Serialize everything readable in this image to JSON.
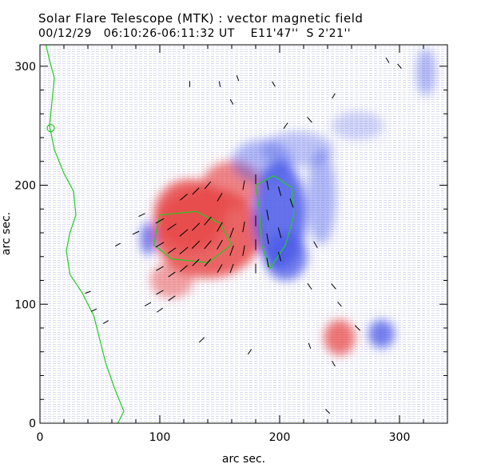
{
  "chart_data": {
    "type": "heatmap",
    "title": "Solar Flare Telescope (MTK) : vector magnetic field",
    "subtitle_date": "00/12/29",
    "subtitle_time": "06:10:26-06:11:32 UT",
    "subtitle_position": "E11'47''  S 2'21''",
    "xlabel": "arc sec.",
    "ylabel": "arc sec.",
    "xlim": [
      0,
      340
    ],
    "ylim": [
      0,
      318
    ],
    "x_ticks": [
      0,
      100,
      200,
      300
    ],
    "y_ticks": [
      0,
      100,
      200,
      300
    ],
    "colors": {
      "positive_polarity": "#e84a4a",
      "negative_polarity": "#4a5ae8",
      "contour": "#22cc22",
      "vectors": "#000000"
    },
    "regions": [
      {
        "polarity": "positive",
        "x": 140,
        "y": 160,
        "rx": 45,
        "ry": 38,
        "strength": 1.0
      },
      {
        "polarity": "positive",
        "x": 125,
        "y": 175,
        "rx": 30,
        "ry": 30,
        "strength": 1.0
      },
      {
        "polarity": "positive",
        "x": 160,
        "y": 200,
        "rx": 25,
        "ry": 20,
        "strength": 0.8
      },
      {
        "polarity": "positive",
        "x": 110,
        "y": 120,
        "rx": 18,
        "ry": 15,
        "strength": 0.6
      },
      {
        "polarity": "positive",
        "x": 250,
        "y": 72,
        "rx": 13,
        "ry": 15,
        "strength": 0.9
      },
      {
        "polarity": "negative",
        "x": 200,
        "y": 175,
        "rx": 22,
        "ry": 45,
        "strength": 1.0
      },
      {
        "polarity": "negative",
        "x": 205,
        "y": 140,
        "rx": 18,
        "ry": 20,
        "strength": 0.9
      },
      {
        "polarity": "negative",
        "x": 185,
        "y": 220,
        "rx": 25,
        "ry": 18,
        "strength": 0.5
      },
      {
        "polarity": "negative",
        "x": 90,
        "y": 155,
        "rx": 6,
        "ry": 14,
        "strength": 0.9
      },
      {
        "polarity": "negative",
        "x": 285,
        "y": 75,
        "rx": 11,
        "ry": 12,
        "strength": 0.9
      },
      {
        "polarity": "negative",
        "x": 235,
        "y": 190,
        "rx": 12,
        "ry": 40,
        "strength": 0.5
      },
      {
        "polarity": "negative",
        "x": 322,
        "y": 295,
        "rx": 8,
        "ry": 20,
        "strength": 0.5
      },
      {
        "polarity": "negative",
        "x": 265,
        "y": 250,
        "rx": 22,
        "ry": 12,
        "strength": 0.3
      },
      {
        "polarity": "negative",
        "x": 215,
        "y": 230,
        "rx": 30,
        "ry": 15,
        "strength": 0.4
      }
    ],
    "limb_contour": [
      [
        5,
        318
      ],
      [
        8,
        305
      ],
      [
        12,
        290
      ],
      [
        10,
        270
      ],
      [
        8,
        250
      ],
      [
        12,
        230
      ],
      [
        20,
        210
      ],
      [
        28,
        195
      ],
      [
        30,
        175
      ],
      [
        25,
        160
      ],
      [
        22,
        145
      ],
      [
        25,
        125
      ],
      [
        35,
        110
      ],
      [
        45,
        90
      ],
      [
        50,
        70
      ],
      [
        55,
        50
      ],
      [
        62,
        30
      ],
      [
        70,
        10
      ],
      [
        65,
        0
      ]
    ],
    "small_contour": {
      "x": 9,
      "y": 248,
      "r": 3
    },
    "neutral_contours": [
      [
        [
          100,
          175
        ],
        [
          130,
          178
        ],
        [
          150,
          168
        ],
        [
          160,
          150
        ],
        [
          140,
          135
        ],
        [
          110,
          138
        ],
        [
          95,
          150
        ],
        [
          100,
          175
        ]
      ],
      [
        [
          180,
          200
        ],
        [
          195,
          208
        ],
        [
          210,
          198
        ],
        [
          212,
          175
        ],
        [
          205,
          150
        ],
        [
          192,
          130
        ],
        [
          185,
          150
        ],
        [
          183,
          180
        ],
        [
          180,
          200
        ]
      ]
    ],
    "vectors": [
      {
        "x": 100,
        "y": 170,
        "angle": -60,
        "len": 8
      },
      {
        "x": 110,
        "y": 165,
        "angle": -55,
        "len": 9
      },
      {
        "x": 120,
        "y": 160,
        "angle": -50,
        "len": 9
      },
      {
        "x": 130,
        "y": 165,
        "angle": -45,
        "len": 9
      },
      {
        "x": 140,
        "y": 170,
        "angle": -40,
        "len": 9
      },
      {
        "x": 150,
        "y": 165,
        "angle": -30,
        "len": 9
      },
      {
        "x": 160,
        "y": 160,
        "angle": -20,
        "len": 9
      },
      {
        "x": 170,
        "y": 165,
        "angle": -10,
        "len": 9
      },
      {
        "x": 180,
        "y": 170,
        "angle": 0,
        "len": 9
      },
      {
        "x": 190,
        "y": 175,
        "angle": 10,
        "len": 9
      },
      {
        "x": 100,
        "y": 150,
        "angle": -60,
        "len": 8
      },
      {
        "x": 110,
        "y": 145,
        "angle": -55,
        "len": 8
      },
      {
        "x": 120,
        "y": 145,
        "angle": -50,
        "len": 9
      },
      {
        "x": 130,
        "y": 150,
        "angle": -45,
        "len": 9
      },
      {
        "x": 140,
        "y": 150,
        "angle": -40,
        "len": 9
      },
      {
        "x": 150,
        "y": 150,
        "angle": -30,
        "len": 9
      },
      {
        "x": 160,
        "y": 145,
        "angle": -20,
        "len": 9
      },
      {
        "x": 170,
        "y": 145,
        "angle": -10,
        "len": 9
      },
      {
        "x": 180,
        "y": 150,
        "angle": 0,
        "len": 9
      },
      {
        "x": 190,
        "y": 155,
        "angle": 10,
        "len": 9
      },
      {
        "x": 200,
        "y": 160,
        "angle": 15,
        "len": 9
      },
      {
        "x": 100,
        "y": 130,
        "angle": -60,
        "len": 7
      },
      {
        "x": 110,
        "y": 125,
        "angle": -55,
        "len": 7
      },
      {
        "x": 120,
        "y": 130,
        "angle": -50,
        "len": 8
      },
      {
        "x": 130,
        "y": 135,
        "angle": -45,
        "len": 8
      },
      {
        "x": 140,
        "y": 135,
        "angle": -40,
        "len": 8
      },
      {
        "x": 150,
        "y": 130,
        "angle": -30,
        "len": 8
      },
      {
        "x": 160,
        "y": 130,
        "angle": -20,
        "len": 8
      },
      {
        "x": 180,
        "y": 130,
        "angle": 0,
        "len": 8
      },
      {
        "x": 190,
        "y": 135,
        "angle": 10,
        "len": 8
      },
      {
        "x": 200,
        "y": 140,
        "angle": 15,
        "len": 8
      },
      {
        "x": 100,
        "y": 110,
        "angle": -60,
        "len": 7
      },
      {
        "x": 110,
        "y": 105,
        "angle": -55,
        "len": 7
      },
      {
        "x": 90,
        "y": 100,
        "angle": -60,
        "len": 6
      },
      {
        "x": 100,
        "y": 95,
        "angle": -55,
        "len": 6
      },
      {
        "x": 120,
        "y": 190,
        "angle": -50,
        "len": 8
      },
      {
        "x": 130,
        "y": 195,
        "angle": -45,
        "len": 8
      },
      {
        "x": 140,
        "y": 200,
        "angle": -40,
        "len": 8
      },
      {
        "x": 150,
        "y": 190,
        "angle": -30,
        "len": 8
      },
      {
        "x": 170,
        "y": 200,
        "angle": -10,
        "len": 8
      },
      {
        "x": 180,
        "y": 205,
        "angle": 0,
        "len": 8
      },
      {
        "x": 190,
        "y": 200,
        "angle": 10,
        "len": 8
      },
      {
        "x": 200,
        "y": 195,
        "angle": 15,
        "len": 8
      },
      {
        "x": 210,
        "y": 185,
        "angle": 20,
        "len": 8
      },
      {
        "x": 85,
        "y": 175,
        "angle": -65,
        "len": 6
      },
      {
        "x": 80,
        "y": 160,
        "angle": -65,
        "len": 6
      },
      {
        "x": 65,
        "y": 150,
        "angle": -60,
        "len": 5
      },
      {
        "x": 230,
        "y": 150,
        "angle": 30,
        "len": 6
      },
      {
        "x": 225,
        "y": 115,
        "angle": 35,
        "len": 6
      },
      {
        "x": 245,
        "y": 115,
        "angle": 40,
        "len": 6
      },
      {
        "x": 250,
        "y": 100,
        "angle": 40,
        "len": 5
      },
      {
        "x": 265,
        "y": 80,
        "angle": 45,
        "len": 6
      },
      {
        "x": 245,
        "y": 50,
        "angle": 30,
        "len": 5
      },
      {
        "x": 240,
        "y": 10,
        "angle": 45,
        "len": 5
      },
      {
        "x": 40,
        "y": 110,
        "angle": -70,
        "len": 5
      },
      {
        "x": 45,
        "y": 95,
        "angle": -65,
        "len": 5
      },
      {
        "x": 55,
        "y": 85,
        "angle": -60,
        "len": 5
      },
      {
        "x": 125,
        "y": 285,
        "angle": 0,
        "len": 5
      },
      {
        "x": 150,
        "y": 285,
        "angle": 10,
        "len": 5
      },
      {
        "x": 165,
        "y": 290,
        "angle": 20,
        "len": 5
      },
      {
        "x": 195,
        "y": 285,
        "angle": 30,
        "len": 5
      },
      {
        "x": 205,
        "y": 250,
        "angle": -35,
        "len": 6
      },
      {
        "x": 160,
        "y": 270,
        "angle": 30,
        "len": 5
      },
      {
        "x": 245,
        "y": 275,
        "angle": -30,
        "len": 5
      },
      {
        "x": 225,
        "y": 255,
        "angle": 40,
        "len": 6
      },
      {
        "x": 300,
        "y": 300,
        "angle": 40,
        "len": 5
      },
      {
        "x": 290,
        "y": 305,
        "angle": 30,
        "len": 5
      },
      {
        "x": 225,
        "y": 65,
        "angle": 20,
        "len": 5
      },
      {
        "x": 175,
        "y": 60,
        "angle": -35,
        "len": 5
      },
      {
        "x": 135,
        "y": 70,
        "angle": -45,
        "len": 6
      }
    ]
  }
}
